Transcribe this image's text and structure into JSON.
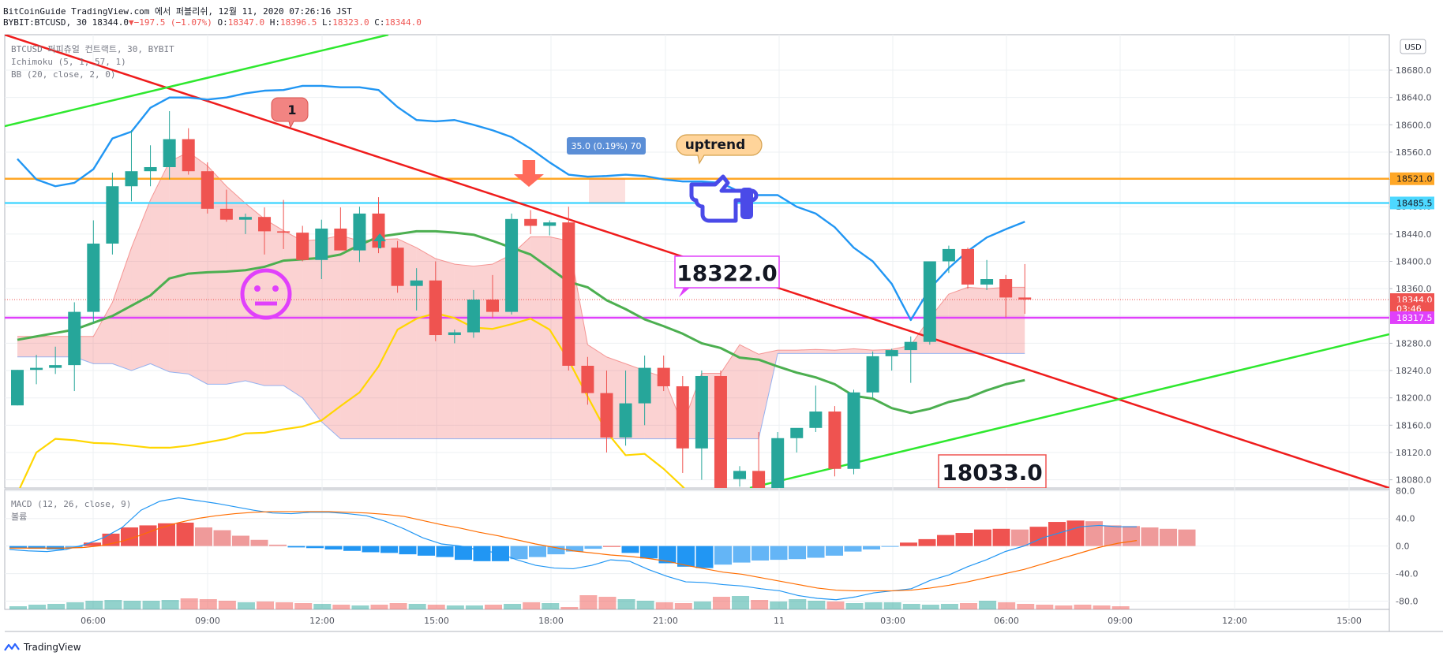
{
  "header": {
    "line1": "BitCoinGuide TradingView.com 에서 퍼블리쉬, 12월 11, 2020 07:26:16 JST",
    "line2_symbol": "BYBIT:BTCUSD, 30 18344.0",
    "line2_change": "−197.5 (−1.07%)",
    "line2_ohlc": [
      {
        "k": "O:",
        "v": "18347.0"
      },
      {
        "k": "H:",
        "v": "18396.5"
      },
      {
        "k": "L:",
        "v": "18323.0"
      },
      {
        "k": "C:",
        "v": "18344.0"
      }
    ]
  },
  "legend": {
    "symbol": "BTCUSD 퍼피츄얼 컨트랙트, 30, BYBIT",
    "ichimoku": "Ichimoku (5, 1, 57, 1)",
    "bb": "BB (20, close, 2, 0)",
    "macd": "MACD (12, 26, close, 9)",
    "volume": "볼륨"
  },
  "currency": "USD",
  "footer": {
    "brand": "TradingView"
  },
  "colors": {
    "up": "#26a69a",
    "down": "#ef5350",
    "bb_basis": "#4caf50",
    "bb_upper": "#2196f3",
    "lagging": "#ffd600",
    "trend_red": "#ef1c1c",
    "trend_green": "#2ee82e",
    "orange_level": "#ffa726",
    "cyan_level": "#4dd8ff",
    "magenta_level": "#e040fb"
  },
  "chart_data": {
    "type": "candlestick",
    "interval": "30",
    "x_ticks": [
      "06:00",
      "09:00",
      "12:00",
      "15:00",
      "18:00",
      "21:00",
      "11",
      "03:00",
      "06:00",
      "09:00",
      "12:00",
      "15:00"
    ],
    "y_ticks": [
      18080.0,
      18120.0,
      18160.0,
      18200.0,
      18240.0,
      18280.0,
      18320.0,
      18360.0,
      18400.0,
      18440.0,
      18480.0,
      18520.0,
      18560.0,
      18600.0,
      18640.0,
      18680.0
    ],
    "y_range": [
      18068,
      18732
    ],
    "price_labels": [
      {
        "text": "18521.0",
        "value": 18521.0,
        "color": "#ffa726"
      },
      {
        "text": "18485.5",
        "value": 18485.5,
        "color": "#4dd8ff"
      },
      {
        "text": "18344.0",
        "value": 18344.0,
        "color": "#ef5350"
      },
      {
        "text": "03:46",
        "value": 18331.0,
        "color": "#ef5350"
      },
      {
        "text": "18317.5",
        "value": 18317.5,
        "color": "#e040fb"
      }
    ],
    "horizontal_levels": [
      {
        "value": 18521.0,
        "color": "#ffa726"
      },
      {
        "value": 18485.5,
        "color": "#4dd8ff"
      },
      {
        "value": 18317.5,
        "color": "#e040fb"
      }
    ],
    "candles": [
      {
        "o": 18189,
        "h": 18241,
        "l": 18189,
        "c": 18241
      },
      {
        "o": 18241,
        "h": 18263,
        "l": 18220,
        "c": 18244
      },
      {
        "o": 18244,
        "h": 18275,
        "l": 18235,
        "c": 18248
      },
      {
        "o": 18248,
        "h": 18340,
        "l": 18210,
        "c": 18326
      },
      {
        "o": 18326,
        "h": 18460,
        "l": 18310,
        "c": 18426
      },
      {
        "o": 18426,
        "h": 18530,
        "l": 18410,
        "c": 18510
      },
      {
        "o": 18510,
        "h": 18592,
        "l": 18488,
        "c": 18532
      },
      {
        "o": 18532,
        "h": 18570,
        "l": 18510,
        "c": 18538
      },
      {
        "o": 18538,
        "h": 18620,
        "l": 18520,
        "c": 18579
      },
      {
        "o": 18579,
        "h": 18595,
        "l": 18527,
        "c": 18532
      },
      {
        "o": 18532,
        "h": 18545,
        "l": 18470,
        "c": 18477
      },
      {
        "o": 18477,
        "h": 18505,
        "l": 18458,
        "c": 18461
      },
      {
        "o": 18461,
        "h": 18470,
        "l": 18440,
        "c": 18465
      },
      {
        "o": 18465,
        "h": 18479,
        "l": 18410,
        "c": 18444
      },
      {
        "o": 18444,
        "h": 18490,
        "l": 18418,
        "c": 18442
      },
      {
        "o": 18442,
        "h": 18452,
        "l": 18400,
        "c": 18402
      },
      {
        "o": 18402,
        "h": 18461,
        "l": 18374,
        "c": 18448
      },
      {
        "o": 18448,
        "h": 18479,
        "l": 18418,
        "c": 18416
      },
      {
        "o": 18416,
        "h": 18480,
        "l": 18399,
        "c": 18470
      },
      {
        "o": 18470,
        "h": 18494,
        "l": 18412,
        "c": 18420
      },
      {
        "o": 18420,
        "h": 18430,
        "l": 18354,
        "c": 18364
      },
      {
        "o": 18364,
        "h": 18390,
        "l": 18328,
        "c": 18372
      },
      {
        "o": 18372,
        "h": 18400,
        "l": 18283,
        "c": 18292
      },
      {
        "o": 18292,
        "h": 18300,
        "l": 18280,
        "c": 18296
      },
      {
        "o": 18296,
        "h": 18358,
        "l": 18288,
        "c": 18344
      },
      {
        "o": 18344,
        "h": 18380,
        "l": 18317,
        "c": 18326
      },
      {
        "o": 18326,
        "h": 18470,
        "l": 18322,
        "c": 18462
      },
      {
        "o": 18462,
        "h": 18475,
        "l": 18440,
        "c": 18452
      },
      {
        "o": 18452,
        "h": 18460,
        "l": 18438,
        "c": 18457
      },
      {
        "o": 18457,
        "h": 18480,
        "l": 18240,
        "c": 18247
      },
      {
        "o": 18247,
        "h": 18260,
        "l": 18190,
        "c": 18207
      },
      {
        "o": 18207,
        "h": 18240,
        "l": 18120,
        "c": 18142
      },
      {
        "o": 18142,
        "h": 18240,
        "l": 18130,
        "c": 18192
      },
      {
        "o": 18192,
        "h": 18262,
        "l": 18160,
        "c": 18244
      },
      {
        "o": 18244,
        "h": 18262,
        "l": 18210,
        "c": 18217
      },
      {
        "o": 18217,
        "h": 18232,
        "l": 18090,
        "c": 18126
      },
      {
        "o": 18126,
        "h": 18240,
        "l": 18080,
        "c": 18232
      },
      {
        "o": 18232,
        "h": 18240,
        "l": 18035,
        "c": 18050
      },
      {
        "o": 18081,
        "h": 18100,
        "l": 18070,
        "c": 18093
      },
      {
        "o": 18093,
        "h": 18150,
        "l": 18033,
        "c": 18040
      },
      {
        "o": 18052,
        "h": 18150,
        "l": 18040,
        "c": 18141
      },
      {
        "o": 18141,
        "h": 18155,
        "l": 18120,
        "c": 18156
      },
      {
        "o": 18156,
        "h": 18218,
        "l": 18150,
        "c": 18180
      },
      {
        "o": 18180,
        "h": 18188,
        "l": 18085,
        "c": 18096
      },
      {
        "o": 18096,
        "h": 18212,
        "l": 18088,
        "c": 18208
      },
      {
        "o": 18208,
        "h": 18268,
        "l": 18200,
        "c": 18261
      },
      {
        "o": 18261,
        "h": 18272,
        "l": 18240,
        "c": 18270
      },
      {
        "o": 18270,
        "h": 18290,
        "l": 18222,
        "c": 18282
      },
      {
        "o": 18282,
        "h": 18400,
        "l": 18278,
        "c": 18400
      },
      {
        "o": 18400,
        "h": 18423,
        "l": 18383,
        "c": 18418
      },
      {
        "o": 18418,
        "h": 18420,
        "l": 18360,
        "c": 18366
      },
      {
        "o": 18366,
        "h": 18402,
        "l": 18358,
        "c": 18374
      },
      {
        "o": 18374,
        "h": 18380,
        "l": 18318,
        "c": 18347
      },
      {
        "o": 18347,
        "h": 18396,
        "l": 18323,
        "c": 18344
      }
    ],
    "bb_upper": [
      18550,
      18520,
      18510,
      18515,
      18535,
      18580,
      18590,
      18625,
      18640,
      18640,
      18637,
      18640,
      18646,
      18650,
      18651,
      18657,
      18657,
      18655,
      18655,
      18651,
      18626,
      18607,
      18605,
      18607,
      18600,
      18592,
      18582,
      18565,
      18545,
      18527,
      18524,
      18525,
      18527,
      18525,
      18520,
      18517,
      18517,
      18515,
      18502,
      18497,
      18497,
      18480,
      18470,
      18450,
      18420,
      18400,
      18367,
      18314,
      18360,
      18390,
      18415,
      18435,
      18447,
      18458
    ],
    "bb_basis": [
      18285,
      18290,
      18295,
      18300,
      18310,
      18320,
      18335,
      18350,
      18375,
      18382,
      18384,
      18385,
      18387,
      18392,
      18401,
      18403,
      18405,
      18410,
      18424,
      18436,
      18440,
      18444,
      18444,
      18442,
      18439,
      18430,
      18420,
      18410,
      18390,
      18370,
      18362,
      18343,
      18330,
      18315,
      18305,
      18294,
      18280,
      18273,
      18259,
      18256,
      18246,
      18237,
      18230,
      18220,
      18203,
      18199,
      18185,
      18178,
      18184,
      18194,
      18200,
      18211,
      18220,
      18226
    ],
    "lagging": [
      18060,
      18120,
      18140,
      18138,
      18134,
      18133,
      18130,
      18127,
      18127,
      18130,
      18135,
      18140,
      18148,
      18149,
      18154,
      18158,
      18167,
      18188,
      18208,
      18246,
      18300,
      18316,
      18324,
      18317,
      18303,
      18301,
      18308,
      18316,
      18300,
      18255,
      18202,
      18150,
      18116,
      18118,
      18096,
      18070,
      18040
    ],
    "ichimoku_cloud": {
      "x_from_candle": 0,
      "a": [
        18290,
        18290,
        18290,
        18290,
        18290,
        18340,
        18420,
        18490,
        18546,
        18560,
        18540,
        18510,
        18485,
        18462,
        18445,
        18430,
        18432,
        18438,
        18430,
        18432,
        18433,
        18420,
        18404,
        18396,
        18393,
        18396,
        18410,
        18436,
        18436,
        18430,
        18278,
        18260,
        18250,
        18240,
        18230,
        18160,
        18236,
        18236,
        18278,
        18264,
        18270,
        18270,
        18271,
        18270,
        18272,
        18270,
        18271,
        18277,
        18317,
        18352,
        18362,
        18360,
        18362,
        18362
      ],
      "b": [
        18260,
        18260,
        18260,
        18260,
        18250,
        18250,
        18240,
        18250,
        18238,
        18235,
        18220,
        18220,
        18225,
        18218,
        18218,
        18200,
        18165,
        18140,
        18140,
        18140,
        18140,
        18140,
        18140,
        18140,
        18140,
        18140,
        18140,
        18140,
        18140,
        18140,
        18140,
        18140,
        18140,
        18140,
        18140,
        18140,
        18140,
        18140,
        18140,
        18140,
        18265,
        18265,
        18265,
        18265,
        18265,
        18265,
        18265,
        18265,
        18265,
        18265,
        18265,
        18265,
        18265,
        18265
      ]
    },
    "macd_panel": {
      "y_ticks": [
        -80.0,
        -40.0,
        0.0,
        40.0,
        80.0
      ],
      "y_range": [
        -92,
        82
      ],
      "histogram": [
        -3,
        -4,
        -5,
        -3,
        5,
        18,
        27,
        30,
        33,
        34,
        27,
        23,
        15,
        9,
        2,
        -2,
        -3,
        -5,
        -7,
        -9,
        -10,
        -12,
        -14,
        -16,
        -20,
        -22,
        -22,
        -19,
        -16,
        -12,
        -8,
        -4,
        0,
        -10,
        -18,
        -25,
        -30,
        -32,
        -27,
        -24,
        -21,
        -20,
        -19,
        -17,
        -14,
        -8,
        -5,
        -1,
        5,
        10,
        16,
        19,
        24,
        25,
        24,
        28,
        35,
        37,
        36,
        30,
        29,
        27,
        25,
        24
      ],
      "macd": [
        -5,
        -7,
        -8,
        -5,
        2,
        12,
        27,
        52,
        65,
        70,
        66,
        62,
        57,
        52,
        48,
        47,
        49,
        49,
        47,
        44,
        36,
        25,
        12,
        3,
        0,
        -6,
        -10,
        -20,
        -28,
        -32,
        -33,
        -28,
        -20,
        -22,
        -34,
        -44,
        -52,
        -53,
        -56,
        -58,
        -62,
        -65,
        -72,
        -76,
        -78,
        -74,
        -68,
        -65,
        -62,
        -50,
        -42,
        -30,
        -20,
        -8,
        0,
        12,
        20,
        28,
        30,
        28,
        28
      ],
      "signal": [
        -3,
        -3,
        -3,
        -3,
        -2,
        1,
        7,
        16,
        26,
        34,
        40,
        44,
        47,
        49,
        50,
        50,
        50,
        50,
        49,
        48,
        46,
        43,
        37,
        31,
        26,
        20,
        15,
        9,
        3,
        -2,
        -7,
        -10,
        -13,
        -15,
        -18,
        -22,
        -28,
        -33,
        -38,
        -41,
        -46,
        -51,
        -56,
        -61,
        -64,
        -65,
        -65,
        -65,
        -64,
        -61,
        -57,
        -52,
        -46,
        -40,
        -34,
        -26,
        -18,
        -10,
        -2,
        4,
        8
      ]
    },
    "volume": [
      4,
      6,
      7,
      9,
      11,
      12,
      11,
      11,
      12,
      14,
      13,
      11,
      9,
      10,
      9,
      8,
      7,
      6,
      5,
      6,
      8,
      7,
      6,
      5,
      5,
      6,
      7,
      9,
      8,
      3,
      18,
      16,
      13,
      11,
      9,
      8,
      10,
      16,
      17,
      12,
      10,
      13,
      11,
      10,
      8,
      9,
      9,
      7,
      6,
      7,
      8,
      11,
      9,
      7,
      6,
      5,
      6,
      5,
      4
    ],
    "annotations": {
      "label_18322": "18322.0",
      "label_18033": "18033.0",
      "callout_uptrend": "uptrend",
      "callout_1": "1",
      "measure": "35.0 (0.19%) 70"
    }
  }
}
